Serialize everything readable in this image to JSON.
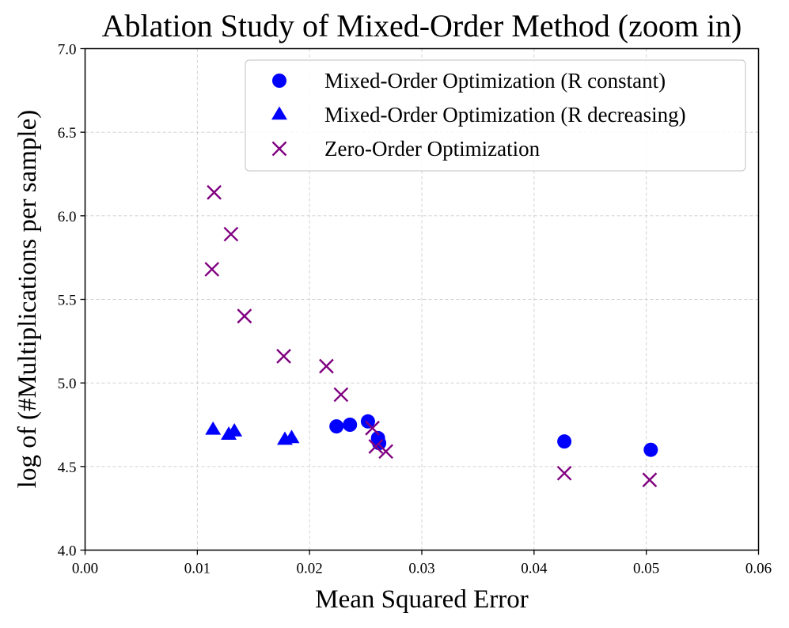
{
  "chart_data": {
    "type": "scatter",
    "title": "Ablation Study of Mixed-Order Method (zoom in)",
    "xlabel": "Mean Squared Error",
    "ylabel": "log of (#Multiplications per sample)",
    "xlim": [
      0.0,
      0.06
    ],
    "ylim": [
      4.0,
      7.0
    ],
    "xticks": [
      0.0,
      0.01,
      0.02,
      0.03,
      0.04,
      0.05,
      0.06
    ],
    "xtick_labels": [
      "0.00",
      "0.01",
      "0.02",
      "0.03",
      "0.04",
      "0.05",
      "0.06"
    ],
    "yticks": [
      4.0,
      4.5,
      5.0,
      5.5,
      6.0,
      6.5,
      7.0
    ],
    "ytick_labels": [
      "4.0",
      "4.5",
      "5.0",
      "5.5",
      "6.0",
      "6.5",
      "7.0"
    ],
    "grid": true,
    "legend_position": "top-right",
    "series": [
      {
        "name": "Mixed-Order Optimization (R constant)",
        "marker": "circle",
        "color": "#0000ff",
        "points": [
          {
            "x": 0.0224,
            "y": 4.74
          },
          {
            "x": 0.0236,
            "y": 4.75
          },
          {
            "x": 0.0252,
            "y": 4.77
          },
          {
            "x": 0.0261,
            "y": 4.67
          },
          {
            "x": 0.0262,
            "y": 4.64
          },
          {
            "x": 0.0427,
            "y": 4.65
          },
          {
            "x": 0.0504,
            "y": 4.6
          }
        ]
      },
      {
        "name": "Mixed-Order Optimization (R decreasing)",
        "marker": "triangle",
        "color": "#0000ff",
        "points": [
          {
            "x": 0.0114,
            "y": 4.72
          },
          {
            "x": 0.0128,
            "y": 4.69
          },
          {
            "x": 0.0133,
            "y": 4.71
          },
          {
            "x": 0.0178,
            "y": 4.66
          },
          {
            "x": 0.0184,
            "y": 4.67
          }
        ]
      },
      {
        "name": "Zero-Order Optimization",
        "marker": "x",
        "color": "#800080",
        "points": [
          {
            "x": 0.0115,
            "y": 6.14
          },
          {
            "x": 0.013,
            "y": 5.89
          },
          {
            "x": 0.0113,
            "y": 5.68
          },
          {
            "x": 0.0142,
            "y": 5.4
          },
          {
            "x": 0.0177,
            "y": 5.16
          },
          {
            "x": 0.0215,
            "y": 5.1
          },
          {
            "x": 0.0228,
            "y": 4.93
          },
          {
            "x": 0.0256,
            "y": 4.73
          },
          {
            "x": 0.0259,
            "y": 4.62
          },
          {
            "x": 0.0268,
            "y": 4.59
          },
          {
            "x": 0.0427,
            "y": 4.46
          },
          {
            "x": 0.0503,
            "y": 4.42
          }
        ]
      }
    ]
  }
}
